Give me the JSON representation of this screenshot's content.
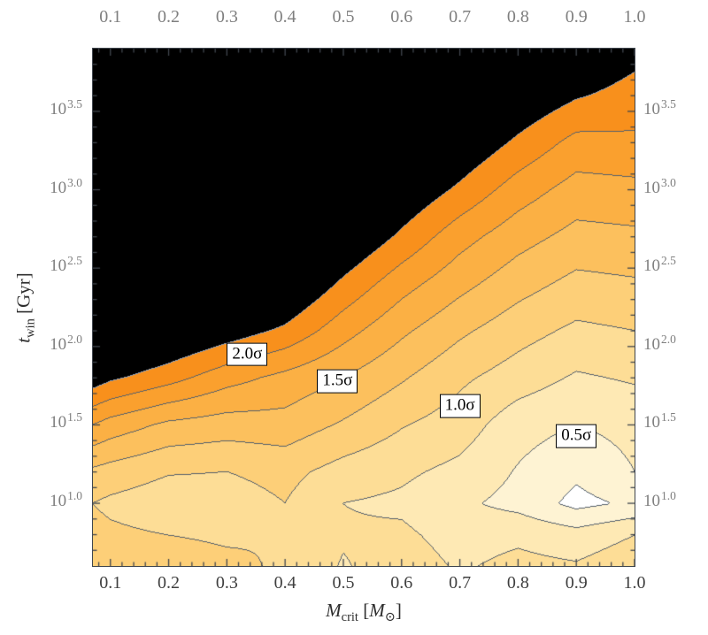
{
  "chart_data": {
    "type": "heatmap",
    "subtype": "filled-contour",
    "title": "",
    "xlabel": "M_crit [M⊙]",
    "ylabel": "t_win [Gyr]",
    "x_axis": {
      "range": [
        0.07,
        1.0
      ],
      "ticks": [
        "0.1",
        "0.2",
        "0.3",
        "0.4",
        "0.5",
        "0.6",
        "0.7",
        "0.8",
        "0.9",
        "1.0"
      ],
      "title_tokens": [
        {
          "t": "M",
          "style": "i"
        },
        {
          "t": "crit",
          "style": "sub"
        },
        {
          "t": " [",
          "style": ""
        },
        {
          "t": "M",
          "style": "i"
        },
        {
          "t": "⊙",
          "style": "sub"
        },
        {
          "t": "]",
          "style": ""
        }
      ]
    },
    "y_axis": {
      "scale": "log10",
      "log10_range": [
        0.6,
        3.9
      ],
      "ticks": [
        {
          "base": "10",
          "exp": "3.5"
        },
        {
          "base": "10",
          "exp": "3.0"
        },
        {
          "base": "10",
          "exp": "2.5"
        },
        {
          "base": "10",
          "exp": "2.0"
        },
        {
          "base": "10",
          "exp": "1.5"
        },
        {
          "base": "10",
          "exp": "1.0"
        }
      ],
      "title_tokens": [
        {
          "t": "t",
          "style": "i"
        },
        {
          "t": "win",
          "style": "sub"
        },
        {
          "t": " [Gyr]",
          "style": ""
        }
      ]
    },
    "contour_levels_sigma": [
      0.25,
      0.5,
      0.75,
      1.0,
      1.25,
      1.5,
      1.75,
      2.0,
      2.25
    ],
    "band_colors": [
      "#FFFFFF",
      "#FEF3D3",
      "#FEE9B4",
      "#FDDD96",
      "#FDCF78",
      "#FCC05D",
      "#FBB044",
      "#FAA02E",
      "#F8901C",
      "#000000"
    ],
    "contour_line_color": "#55606C",
    "black_region_edge_color": "#8FA2BC",
    "frame_color": "#40464E",
    "grid_x": [
      0.07,
      0.1,
      0.2,
      0.3,
      0.4,
      0.5,
      0.6,
      0.7,
      0.8,
      0.9,
      1.0
    ],
    "grid_log10_t": [
      0.6,
      0.8,
      1.0,
      1.2,
      1.5,
      1.8,
      2.1,
      2.4,
      2.7,
      3.0,
      3.3,
      3.6,
      3.9
    ],
    "sigma_grid": [
      [
        1.15,
        1.12,
        1.18,
        1.08,
        0.95,
        0.73,
        0.88,
        0.72,
        0.82,
        0.78,
        0.92
      ],
      [
        1.08,
        1.05,
        1.0,
        0.95,
        1.0,
        0.78,
        0.8,
        0.65,
        0.7,
        0.6,
        0.75
      ],
      [
        1.0,
        0.95,
        0.85,
        0.88,
        1.0,
        0.75,
        0.7,
        0.55,
        0.42,
        0.18,
        0.3
      ],
      [
        1.2,
        1.15,
        1.02,
        1.0,
        1.08,
        0.9,
        0.8,
        0.68,
        0.48,
        0.3,
        0.5
      ],
      [
        1.75,
        1.65,
        1.45,
        1.38,
        1.4,
        1.22,
        1.02,
        0.88,
        0.6,
        0.5,
        0.58
      ],
      [
        2.4,
        2.3,
        2.1,
        1.85,
        1.68,
        1.5,
        1.28,
        1.05,
        0.88,
        0.72,
        0.78
      ],
      [
        2.9,
        2.8,
        2.6,
        2.4,
        2.2,
        1.85,
        1.55,
        1.3,
        1.1,
        0.95,
        1.0
      ],
      [
        3.2,
        3.1,
        3.0,
        2.8,
        2.6,
        2.2,
        1.85,
        1.58,
        1.35,
        1.18,
        1.22
      ],
      [
        3.5,
        3.4,
        3.3,
        3.1,
        2.9,
        2.55,
        2.2,
        1.85,
        1.6,
        1.42,
        1.45
      ],
      [
        3.8,
        3.7,
        3.6,
        3.4,
        3.2,
        2.85,
        2.5,
        2.2,
        1.88,
        1.65,
        1.68
      ],
      [
        4.0,
        3.95,
        3.85,
        3.7,
        3.5,
        3.15,
        2.8,
        2.5,
        2.2,
        1.92,
        1.95
      ],
      [
        4.2,
        4.15,
        4.1,
        3.95,
        3.8,
        3.45,
        3.1,
        2.8,
        2.5,
        2.28,
        2.15
      ],
      [
        4.4,
        4.35,
        4.3,
        4.2,
        4.1,
        3.75,
        3.4,
        3.1,
        2.8,
        2.55,
        2.35
      ]
    ],
    "contour_labels": [
      {
        "text": "2.0σ",
        "x": 0.335,
        "log10_t": 1.95
      },
      {
        "text": "1.5σ",
        "x": 0.49,
        "log10_t": 1.78
      },
      {
        "text": "1.0σ",
        "x": 0.7,
        "log10_t": 1.62
      },
      {
        "text": "0.5σ",
        "x": 0.9,
        "log10_t": 1.43
      }
    ]
  },
  "styles": {
    "background": "#ffffff",
    "tick_label_color_top": "#7f7f7f",
    "tick_label_color_bottom": "#3f3f3f",
    "tick_label_color_sides": "#7f7f7f",
    "axis_title_color": "#2e2e2e"
  }
}
